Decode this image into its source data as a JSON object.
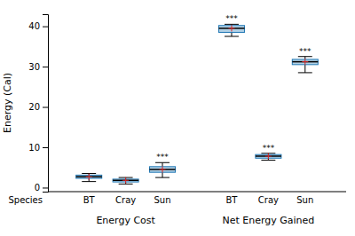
{
  "chart_data": {
    "type": "box",
    "ylabel": "Energy (Cal)",
    "xlabel": "Species",
    "ylim": [
      -1,
      43
    ],
    "yticks": [
      0,
      10,
      20,
      30,
      40
    ],
    "marker": "plus",
    "groups": [
      {
        "name": "Energy Cost",
        "categories": [
          "BT",
          "Cray",
          "Sun"
        ],
        "boxes": [
          {
            "q1": 2.3,
            "median": 2.7,
            "q3": 3.1,
            "whisker_low": 1.5,
            "whisker_high": 3.5,
            "mean": 2.7
          },
          {
            "q1": 1.4,
            "median": 1.8,
            "q3": 2.1,
            "whisker_low": 0.9,
            "whisker_high": 2.5,
            "mean": 1.8
          },
          {
            "q1": 3.8,
            "median": 4.5,
            "q3": 5.2,
            "whisker_low": 2.5,
            "whisker_high": 6.2,
            "mean": 4.5
          }
        ],
        "annotations": [
          null,
          null,
          "***"
        ]
      },
      {
        "name": "Net Energy Gained",
        "categories": [
          "BT",
          "Cray",
          "Sun"
        ],
        "boxes": [
          {
            "q1": 38.5,
            "median": 39.5,
            "q3": 40.2,
            "whisker_low": 37.5,
            "whisker_high": 40.5,
            "mean": 39.5
          },
          {
            "q1": 7.3,
            "median": 7.8,
            "q3": 8.2,
            "whisker_low": 6.8,
            "whisker_high": 8.5,
            "mean": 7.8
          },
          {
            "q1": 30.5,
            "median": 31.2,
            "q3": 31.8,
            "whisker_low": 28.5,
            "whisker_high": 32.5,
            "mean": 31.2
          }
        ],
        "annotations": [
          "***",
          "***",
          "***"
        ]
      }
    ]
  }
}
